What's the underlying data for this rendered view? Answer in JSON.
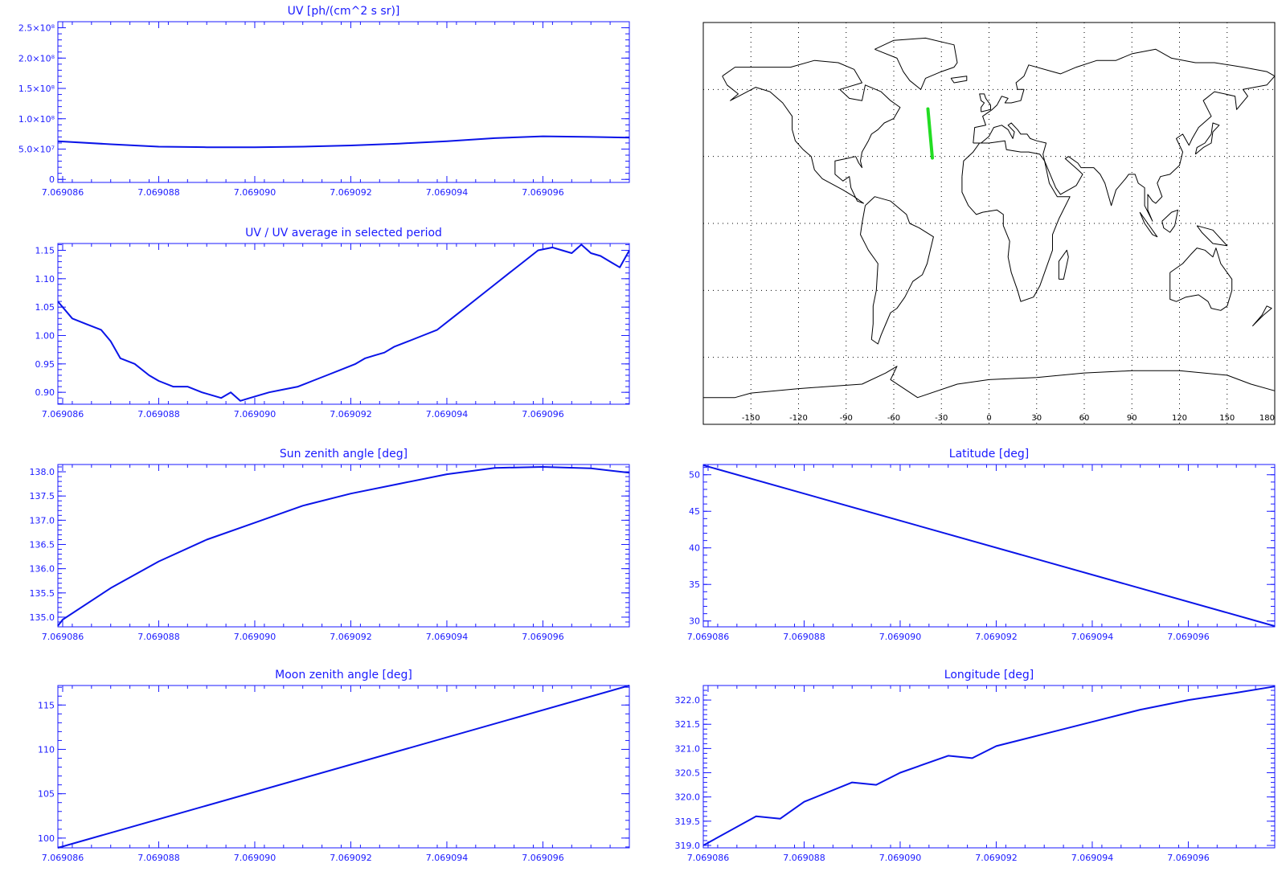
{
  "xticks": [
    "7.069086",
    "7.069088",
    "7.069090",
    "7.069092",
    "7.069094",
    "7.069096"
  ],
  "chart_data": [
    {
      "id": "uv",
      "type": "line",
      "title": "UV [ph/(cm^2 s sr)]",
      "xlim": [
        7.0690859,
        7.0690978
      ],
      "ylim": [
        -5000000,
        260000000
      ],
      "yticks": [
        {
          "v": 0,
          "label": "0"
        },
        {
          "v": 50000000,
          "label": "5.0×10⁷"
        },
        {
          "v": 100000000,
          "label": "1.0×10⁸"
        },
        {
          "v": 150000000,
          "label": "1.5×10⁸"
        },
        {
          "v": 200000000,
          "label": "2.0×10⁸"
        },
        {
          "v": 250000000,
          "label": "2.5×10⁸"
        }
      ],
      "x": [
        7.0690859,
        7.069087,
        7.069088,
        7.069089,
        7.06909,
        7.069091,
        7.069092,
        7.069093,
        7.069094,
        7.069095,
        7.069096,
        7.069097,
        7.0690978
      ],
      "y": [
        63000000,
        58000000,
        54000000,
        53000000,
        53000000,
        54000000,
        56000000,
        59000000,
        63000000,
        68000000,
        71000000,
        70000000,
        69000000
      ]
    },
    {
      "id": "ratio",
      "type": "line",
      "title": "UV / UV average in selected period",
      "xlim": [
        7.0690859,
        7.0690978
      ],
      "ylim": [
        0.879,
        1.162
      ],
      "yticks": [
        {
          "v": 0.9,
          "label": "0.90"
        },
        {
          "v": 0.95,
          "label": "0.95"
        },
        {
          "v": 1.0,
          "label": "1.00"
        },
        {
          "v": 1.05,
          "label": "1.05"
        },
        {
          "v": 1.1,
          "label": "1.10"
        },
        {
          "v": 1.15,
          "label": "1.15"
        }
      ],
      "x": [
        7.0690859,
        7.0690862,
        7.0690865,
        7.0690868,
        7.069087,
        7.0690872,
        7.0690875,
        7.0690878,
        7.069088,
        7.0690883,
        7.0690886,
        7.0690889,
        7.0690891,
        7.0690893,
        7.0690895,
        7.0690897,
        7.0690899,
        7.0690901,
        7.0690903,
        7.0690906,
        7.0690909,
        7.0690912,
        7.0690915,
        7.0690918,
        7.0690921,
        7.0690923,
        7.0690925,
        7.0690927,
        7.0690929,
        7.0690932,
        7.0690935,
        7.0690938,
        7.0690941,
        7.0690944,
        7.0690947,
        7.069095,
        7.0690953,
        7.0690956,
        7.0690959,
        7.0690962,
        7.0690964,
        7.0690966,
        7.0690968,
        7.069097,
        7.0690972,
        7.0690974,
        7.0690976,
        7.0690978
      ],
      "y": [
        1.06,
        1.03,
        1.02,
        1.01,
        0.99,
        0.96,
        0.95,
        0.93,
        0.92,
        0.91,
        0.91,
        0.9,
        0.895,
        0.89,
        0.9,
        0.885,
        0.89,
        0.895,
        0.9,
        0.905,
        0.91,
        0.92,
        0.93,
        0.94,
        0.95,
        0.96,
        0.965,
        0.97,
        0.98,
        0.99,
        1.0,
        1.01,
        1.03,
        1.05,
        1.07,
        1.09,
        1.11,
        1.13,
        1.15,
        1.155,
        1.15,
        1.145,
        1.16,
        1.145,
        1.14,
        1.13,
        1.12,
        1.15
      ]
    },
    {
      "id": "sza",
      "type": "line",
      "title": "Sun zenith angle [deg]",
      "xlim": [
        7.0690859,
        7.0690978
      ],
      "ylim": [
        134.8,
        138.15
      ],
      "yticks": [
        {
          "v": 135.0,
          "label": "135.0"
        },
        {
          "v": 135.5,
          "label": "135.5"
        },
        {
          "v": 136.0,
          "label": "136.0"
        },
        {
          "v": 136.5,
          "label": "136.5"
        },
        {
          "v": 137.0,
          "label": "137.0"
        },
        {
          "v": 137.5,
          "label": "137.5"
        },
        {
          "v": 138.0,
          "label": "138.0"
        }
      ],
      "x": [
        7.0690859,
        7.069086,
        7.069087,
        7.069088,
        7.069089,
        7.06909,
        7.069091,
        7.069092,
        7.069093,
        7.069094,
        7.069095,
        7.069096,
        7.069097,
        7.0690978
      ],
      "y": [
        134.82,
        134.95,
        135.6,
        136.15,
        136.6,
        136.95,
        137.3,
        137.55,
        137.75,
        137.95,
        138.08,
        138.1,
        138.07,
        137.98
      ]
    },
    {
      "id": "mza",
      "type": "line",
      "title": "Moon zenith angle [deg]",
      "xlim": [
        7.0690859,
        7.0690978
      ],
      "ylim": [
        98.9,
        117.2
      ],
      "yticks": [
        {
          "v": 100,
          "label": "100"
        },
        {
          "v": 105,
          "label": "105"
        },
        {
          "v": 110,
          "label": "110"
        },
        {
          "v": 115,
          "label": "115"
        }
      ],
      "x": [
        7.0690859,
        7.0690978
      ],
      "y": [
        98.9,
        117.2
      ]
    },
    {
      "id": "lat",
      "type": "line",
      "title": "Latitude [deg]",
      "xlim": [
        7.0690859,
        7.0690978
      ],
      "ylim": [
        29.2,
        51.4
      ],
      "yticks": [
        {
          "v": 30,
          "label": "30"
        },
        {
          "v": 35,
          "label": "35"
        },
        {
          "v": 40,
          "label": "40"
        },
        {
          "v": 45,
          "label": "45"
        },
        {
          "v": 50,
          "label": "50"
        }
      ],
      "x": [
        7.0690859,
        7.0690978
      ],
      "y": [
        51.3,
        29.3
      ]
    },
    {
      "id": "lon",
      "type": "line",
      "title": "Longitude [deg]",
      "xlim": [
        7.0690859,
        7.0690978
      ],
      "ylim": [
        318.95,
        322.3
      ],
      "yticks": [
        {
          "v": 319.0,
          "label": "319.0"
        },
        {
          "v": 319.5,
          "label": "319.5"
        },
        {
          "v": 320.0,
          "label": "320.0"
        },
        {
          "v": 320.5,
          "label": "320.5"
        },
        {
          "v": 321.0,
          "label": "321.0"
        },
        {
          "v": 321.5,
          "label": "321.5"
        },
        {
          "v": 322.0,
          "label": "322.0"
        }
      ],
      "x": [
        7.0690859,
        7.069087,
        7.0690875,
        7.069088,
        7.069089,
        7.0690895,
        7.06909,
        7.069091,
        7.0690915,
        7.069092,
        7.069093,
        7.069094,
        7.069095,
        7.069096,
        7.069097,
        7.0690978
      ],
      "y": [
        319.0,
        319.6,
        319.55,
        319.9,
        320.3,
        320.25,
        320.5,
        320.85,
        320.8,
        321.05,
        321.3,
        321.55,
        321.8,
        322.0,
        322.15,
        322.28
      ]
    }
  ],
  "map": {
    "xticks": [
      "-150",
      "-120",
      "-90",
      "-60",
      "-30",
      "0",
      "30",
      "60",
      "90",
      "120",
      "150",
      "180"
    ],
    "lon_values": [
      -150,
      -120,
      -90,
      -60,
      -30,
      0,
      30,
      60,
      90,
      120,
      150,
      180
    ],
    "track_color": "#22dd22",
    "track": {
      "lon": [
        -38.5,
        -35.7
      ],
      "lat": [
        51.3,
        29.3
      ]
    }
  }
}
